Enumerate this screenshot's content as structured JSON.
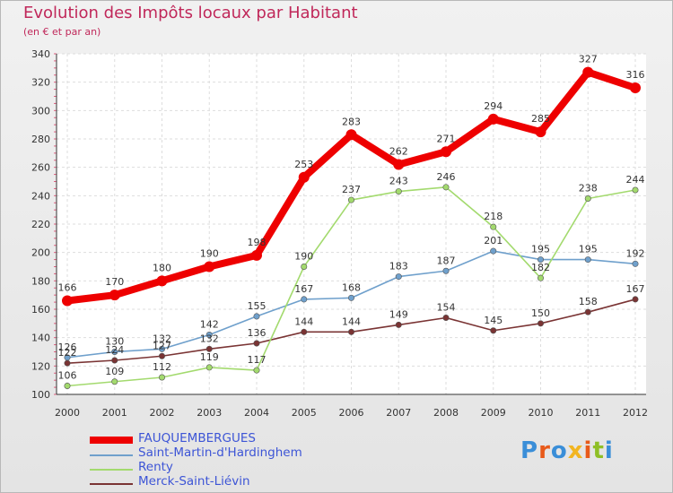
{
  "title": "Evolution des Impôts locaux par Habitant",
  "subtitle": "(en € et par an)",
  "logo": {
    "text": "Proxiti",
    "colors": [
      "#3a8ed8",
      "#e85a1a",
      "#3a8ed8",
      "#f2b521",
      "#e85a1a",
      "#8fbf26",
      "#3a8ed8"
    ]
  },
  "chart_data": {
    "type": "line",
    "x": [
      "2000",
      "2001",
      "2002",
      "2003",
      "2004",
      "2005",
      "2006",
      "2007",
      "2008",
      "2009",
      "2010",
      "2011",
      "2012"
    ],
    "ylim": [
      100,
      340
    ],
    "yticks": [
      100,
      120,
      140,
      160,
      180,
      200,
      220,
      240,
      260,
      280,
      300,
      320,
      340
    ],
    "grid": true,
    "legend_position": "bottom-left",
    "series": [
      {
        "name": "FAUQUEMBERGUES",
        "color": "#ee0000",
        "values": [
          166,
          170,
          180,
          190,
          198,
          253,
          283,
          262,
          271,
          294,
          285,
          327,
          316
        ]
      },
      {
        "name": "Saint-Martin-d'Hardinghem",
        "color": "#6fa0cc",
        "values": [
          126,
          130,
          132,
          142,
          155,
          167,
          168,
          183,
          187,
          201,
          195,
          195,
          192
        ]
      },
      {
        "name": "Renty",
        "color": "#a3da6e",
        "values": [
          106,
          109,
          112,
          119,
          117,
          190,
          237,
          243,
          246,
          218,
          182,
          238,
          244
        ]
      },
      {
        "name": "Merck-Saint-Liévin",
        "color": "#7a3434",
        "values": [
          122,
          124,
          127,
          132,
          136,
          144,
          144,
          149,
          154,
          145,
          150,
          158,
          167
        ]
      }
    ]
  }
}
